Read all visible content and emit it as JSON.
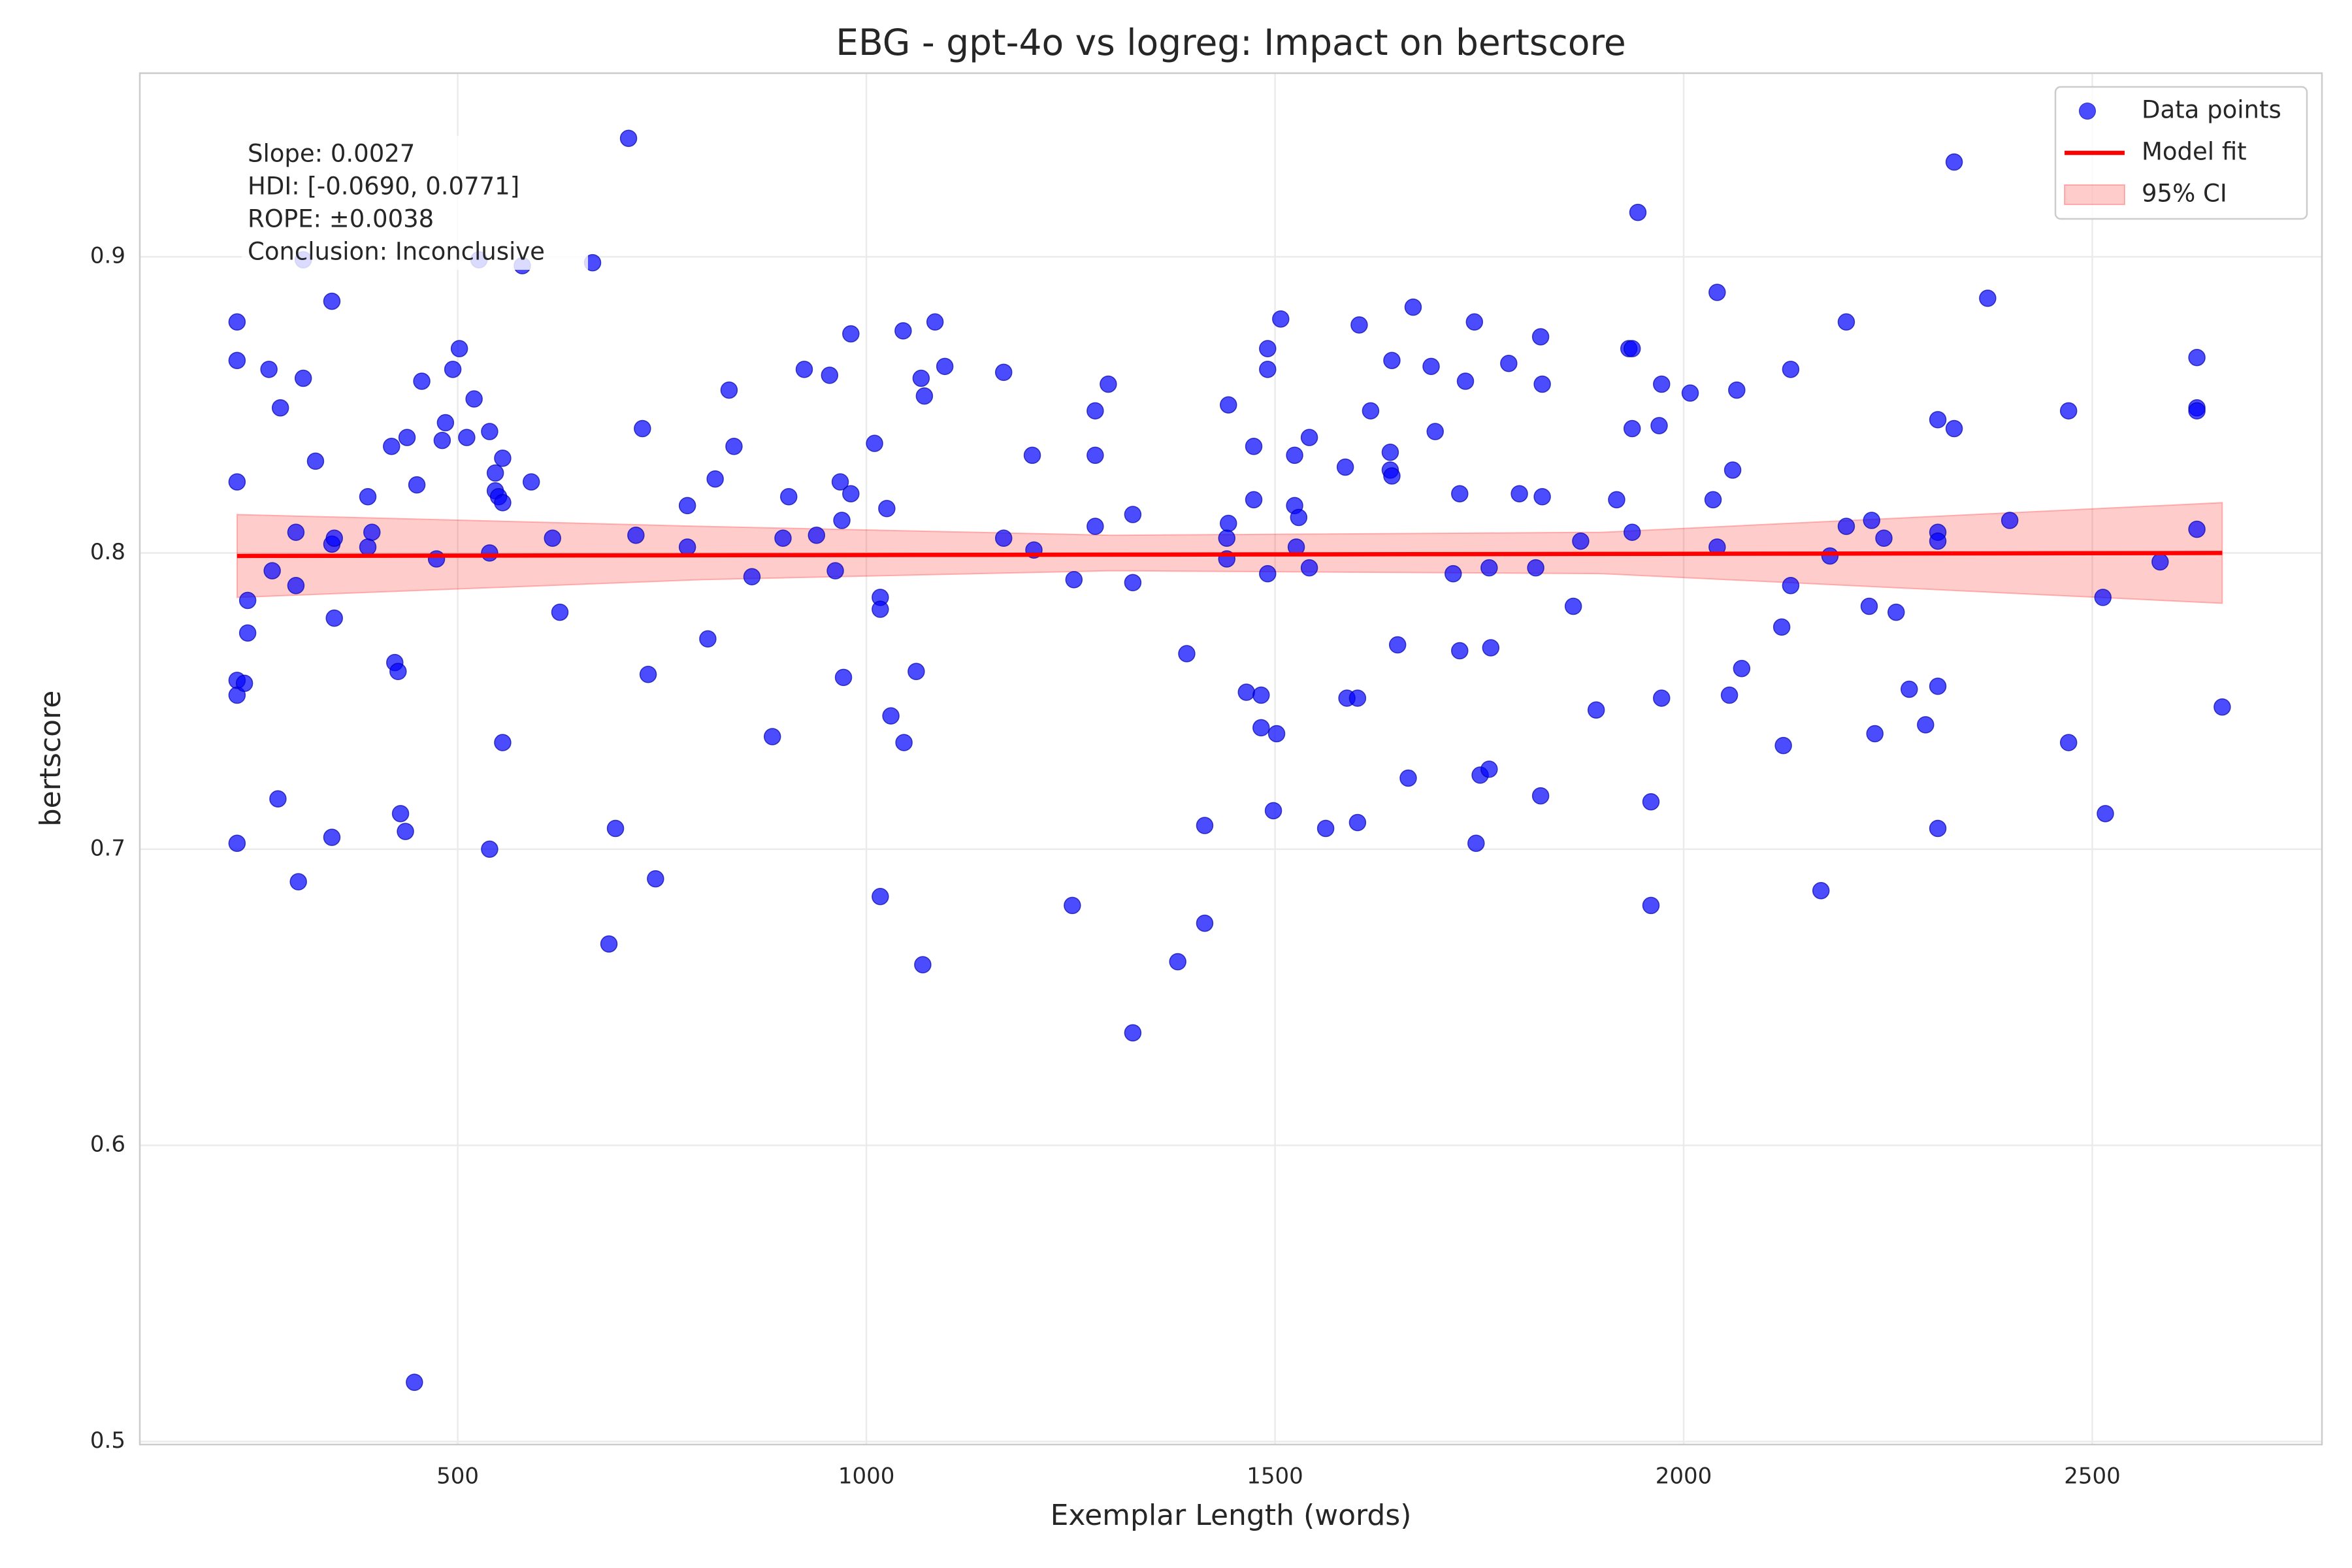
{
  "chart_data": {
    "type": "scatter",
    "title": "EBG - gpt-4o vs logreg: Impact on bertscore",
    "x_label": "Exemplar Length (words)",
    "y_label": "bertscore",
    "annotations": [
      "Slope: 0.0027",
      "HDI: [-0.0690, 0.0771]",
      "ROPE: ±0.0038",
      "Conclusion: Inconclusive"
    ],
    "xlim": [
      111,
      2781
    ],
    "ylim": [
      0.499,
      0.962
    ],
    "xticks": [
      500,
      1000,
      1500,
      2000,
      2500
    ],
    "yticks": [
      0.5,
      0.6,
      0.7,
      0.8,
      0.9
    ],
    "grid": true,
    "legend": "upper right",
    "series": [
      {
        "name": "Data points",
        "type": "scatter",
        "color": "#0000ff",
        "x": [
          230,
          230,
          230,
          230,
          230,
          230,
          239,
          243,
          243,
          269,
          273,
          280,
          283,
          302,
          302,
          305,
          311,
          311,
          326,
          346,
          346,
          349,
          349,
          346,
          390,
          390,
          395,
          419,
          423,
          427,
          430,
          436,
          438,
          447,
          450,
          456,
          474,
          481,
          485,
          494,
          502,
          511,
          520,
          526,
          539,
          539,
          539,
          546,
          546,
          550,
          555,
          555,
          555,
          579,
          590,
          616,
          625,
          665,
          685,
          693,
          709,
          718,
          726,
          733,
          742,
          781,
          781,
          806,
          815,
          832,
          838,
          860,
          885,
          898,
          905,
          924,
          939,
          955,
          962,
          968,
          970,
          972,
          981,
          981,
          1010,
          1017,
          1017,
          1017,
          1025,
          1030,
          1045,
          1046,
          1061,
          1067,
          1071,
          1069,
          1084,
          1096,
          1168,
          1168,
          1203,
          1205,
          1252,
          1254,
          1280,
          1280,
          1280,
          1296,
          1326,
          1326,
          1326,
          1381,
          1392,
          1414,
          1414,
          1443,
          1443,
          1441,
          1441,
          1465,
          1474,
          1474,
          1483,
          1483,
          1491,
          1491,
          1491,
          1498,
          1502,
          1507,
          1524,
          1524,
          1526,
          1529,
          1542,
          1542,
          1562,
          1586,
          1588,
          1601,
          1601,
          1603,
          1617,
          1641,
          1641,
          1643,
          1643,
          1650,
          1663,
          1669,
          1691,
          1696,
          1718,
          1726,
          1726,
          1733,
          1744,
          1746,
          1751,
          1762,
          1762,
          1764,
          1786,
          1799,
          1819,
          1825,
          1825,
          1827,
          1827,
          1865,
          1874,
          1893,
          1918,
          1933,
          1937,
          1937,
          1937,
          1944,
          1960,
          1960,
          1970,
          1973,
          1973,
          2008,
          2036,
          2041,
          2041,
          2056,
          2060,
          2065,
          2071,
          2120,
          2122,
          2131,
          2131,
          2168,
          2179,
          2199,
          2199,
          2227,
          2230,
          2234,
          2245,
          2260,
          2276,
          2296,
          2311,
          2311,
          2311,
          2311,
          2311,
          2331,
          2331,
          2372,
          2399,
          2471,
          2471,
          2513,
          2516,
          2583,
          2628,
          2628,
          2628,
          2628,
          2659
        ],
        "values": [
          0.878,
          0.865,
          0.824,
          0.757,
          0.752,
          0.702,
          0.756,
          0.784,
          0.773,
          0.862,
          0.794,
          0.717,
          0.849,
          0.807,
          0.789,
          0.689,
          0.859,
          0.899,
          0.831,
          0.885,
          0.803,
          0.805,
          0.778,
          0.704,
          0.819,
          0.802,
          0.807,
          0.836,
          0.763,
          0.76,
          0.712,
          0.706,
          0.839,
          0.52,
          0.823,
          0.858,
          0.798,
          0.838,
          0.844,
          0.862,
          0.869,
          0.839,
          0.852,
          0.899,
          0.841,
          0.8,
          0.7,
          0.827,
          0.821,
          0.819,
          0.832,
          0.817,
          0.736,
          0.897,
          0.824,
          0.805,
          0.78,
          0.898,
          0.668,
          0.707,
          0.94,
          0.806,
          0.842,
          0.759,
          0.69,
          0.816,
          0.802,
          0.771,
          0.825,
          0.855,
          0.836,
          0.792,
          0.738,
          0.805,
          0.819,
          0.862,
          0.806,
          0.86,
          0.794,
          0.824,
          0.811,
          0.758,
          0.874,
          0.82,
          0.837,
          0.785,
          0.781,
          0.684,
          0.815,
          0.745,
          0.875,
          0.736,
          0.76,
          0.859,
          0.853,
          0.661,
          0.878,
          0.863,
          0.861,
          0.805,
          0.833,
          0.801,
          0.681,
          0.791,
          0.848,
          0.833,
          0.809,
          0.857,
          0.813,
          0.79,
          0.638,
          0.662,
          0.766,
          0.708,
          0.675,
          0.85,
          0.81,
          0.805,
          0.798,
          0.753,
          0.836,
          0.818,
          0.752,
          0.741,
          0.869,
          0.862,
          0.793,
          0.713,
          0.739,
          0.879,
          0.833,
          0.816,
          0.802,
          0.812,
          0.839,
          0.795,
          0.707,
          0.829,
          0.751,
          0.751,
          0.709,
          0.877,
          0.848,
          0.834,
          0.828,
          0.826,
          0.865,
          0.769,
          0.724,
          0.883,
          0.863,
          0.841,
          0.793,
          0.82,
          0.767,
          0.858,
          0.878,
          0.702,
          0.725,
          0.795,
          0.727,
          0.768,
          0.864,
          0.82,
          0.795,
          0.873,
          0.718,
          0.857,
          0.819,
          0.782,
          0.804,
          0.747,
          0.818,
          0.869,
          0.869,
          0.842,
          0.807,
          0.915,
          0.716,
          0.681,
          0.843,
          0.857,
          0.751,
          0.854,
          0.818,
          0.888,
          0.802,
          0.752,
          0.828,
          0.855,
          0.761,
          0.775,
          0.735,
          0.862,
          0.789,
          0.686,
          0.799,
          0.878,
          0.809,
          0.782,
          0.811,
          0.739,
          0.805,
          0.78,
          0.754,
          0.742,
          0.845,
          0.807,
          0.804,
          0.755,
          0.707,
          0.932,
          0.842,
          0.886,
          0.811,
          0.848,
          0.736,
          0.785,
          0.712,
          0.797,
          0.866,
          0.849,
          0.848,
          0.808,
          0.748
        ]
      },
      {
        "name": "Model fit",
        "type": "line",
        "color": "#ff0000",
        "x": [
          230,
          2659
        ],
        "values": [
          0.799,
          0.8
        ]
      },
      {
        "name": "95% CI",
        "type": "band",
        "color": "#ff0000",
        "x": [
          230,
          800,
          1300,
          1900,
          2659
        ],
        "lower": [
          0.785,
          0.791,
          0.794,
          0.793,
          0.783
        ],
        "upper": [
          0.813,
          0.809,
          0.806,
          0.807,
          0.817
        ]
      }
    ]
  }
}
